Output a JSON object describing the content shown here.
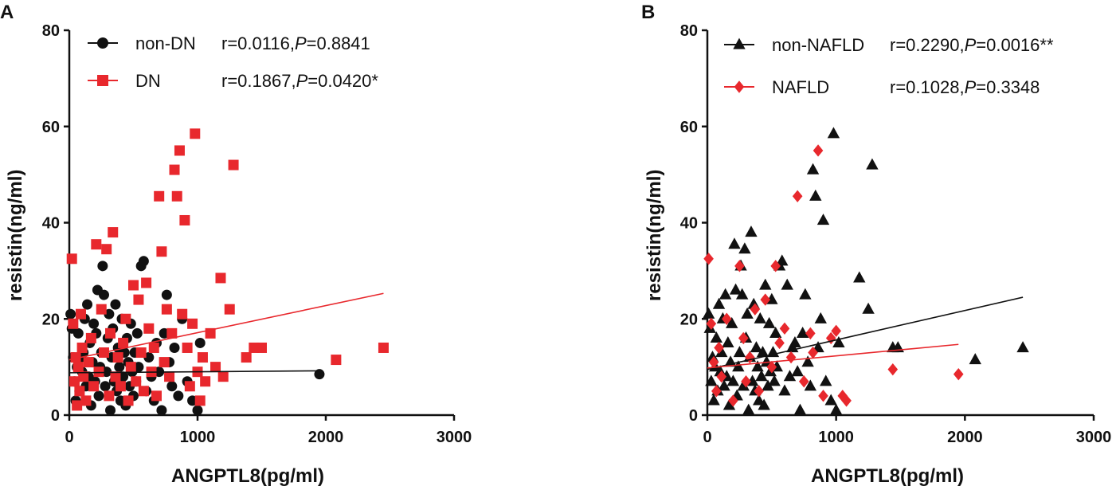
{
  "chart_data": [
    {
      "panel": "A",
      "type": "scatter",
      "xlabel": "ANGPTL8(pg/ml)",
      "ylabel": "resistin(ng/ml)",
      "xlim": [
        0,
        3000
      ],
      "ylim": [
        0,
        80
      ],
      "xticks": [
        "0",
        "1000",
        "2000",
        "3000"
      ],
      "yticks": [
        "0",
        "20",
        "40",
        "60",
        "80"
      ],
      "legend_position": "top-left",
      "series": [
        {
          "name": "non-DN",
          "stat_r": "r=0.0116,",
          "stat_p_label": "P",
          "stat_p_value": "=0.8841",
          "color": "#111111",
          "marker": "circle",
          "fit": {
            "x": [
              0,
              1950
            ],
            "y": [
              8.8,
              9.2
            ]
          },
          "points": [
            [
              10,
              21
            ],
            [
              20,
              18
            ],
            [
              30,
              12
            ],
            [
              40,
              7
            ],
            [
              50,
              3
            ],
            [
              60,
              10
            ],
            [
              70,
              17
            ],
            [
              80,
              5
            ],
            [
              90,
              12
            ],
            [
              100,
              9
            ],
            [
              110,
              13
            ],
            [
              120,
              20
            ],
            [
              130,
              6
            ],
            [
              140,
              23
            ],
            [
              150,
              8
            ],
            [
              160,
              15
            ],
            [
              170,
              2
            ],
            [
              180,
              11
            ],
            [
              190,
              19
            ],
            [
              200,
              7
            ],
            [
              210,
              17
            ],
            [
              220,
              26
            ],
            [
              230,
              4
            ],
            [
              240,
              10
            ],
            [
              250,
              13
            ],
            [
              260,
              31
            ],
            [
              270,
              25
            ],
            [
              280,
              6
            ],
            [
              290,
              9
            ],
            [
              300,
              16
            ],
            [
              310,
              21
            ],
            [
              320,
              1
            ],
            [
              330,
              12
            ],
            [
              340,
              18
            ],
            [
              350,
              7
            ],
            [
              360,
              23
            ],
            [
              370,
              5
            ],
            [
              380,
              14
            ],
            [
              390,
              10
            ],
            [
              400,
              3
            ],
            [
              410,
              20
            ],
            [
              420,
              8
            ],
            [
              430,
              13
            ],
            [
              440,
              2
            ],
            [
              450,
              16
            ],
            [
              460,
              11
            ],
            [
              470,
              6
            ],
            [
              480,
              19
            ],
            [
              490,
              9
            ],
            [
              500,
              4
            ],
            [
              510,
              13
            ],
            [
              520,
              7
            ],
            [
              530,
              17
            ],
            [
              540,
              10
            ],
            [
              560,
              31
            ],
            [
              580,
              32
            ],
            [
              600,
              5
            ],
            [
              620,
              12
            ],
            [
              640,
              8
            ],
            [
              660,
              3
            ],
            [
              680,
              15
            ],
            [
              700,
              9
            ],
            [
              720,
              1
            ],
            [
              740,
              17
            ],
            [
              760,
              25
            ],
            [
              780,
              11
            ],
            [
              800,
              6
            ],
            [
              820,
              14
            ],
            [
              850,
              4
            ],
            [
              880,
              20
            ],
            [
              920,
              7
            ],
            [
              960,
              3
            ],
            [
              1000,
              1
            ],
            [
              1020,
              15
            ],
            [
              1950,
              8.5
            ]
          ]
        },
        {
          "name": "DN",
          "stat_r": "r=0.1867,",
          "stat_p_label": "P",
          "stat_p_value": "=0.0420*",
          "color": "#e8282d",
          "marker": "square",
          "fit": {
            "x": [
              0,
              2450
            ],
            "y": [
              11.5,
              25.3
            ]
          },
          "points": [
            [
              20,
              32.5
            ],
            [
              30,
              19
            ],
            [
              40,
              7
            ],
            [
              50,
              12
            ],
            [
              60,
              2
            ],
            [
              70,
              10
            ],
            [
              80,
              5
            ],
            [
              90,
              21
            ],
            [
              100,
              14
            ],
            [
              110,
              8
            ],
            [
              130,
              3
            ],
            [
              150,
              11
            ],
            [
              170,
              16
            ],
            [
              190,
              6
            ],
            [
              210,
              35.5
            ],
            [
              230,
              9
            ],
            [
              250,
              22
            ],
            [
              270,
              13
            ],
            [
              290,
              34.5
            ],
            [
              310,
              4
            ],
            [
              320,
              17
            ],
            [
              340,
              38
            ],
            [
              360,
              8
            ],
            [
              380,
              12
            ],
            [
              400,
              6
            ],
            [
              420,
              15
            ],
            [
              440,
              20
            ],
            [
              460,
              3
            ],
            [
              480,
              10
            ],
            [
              500,
              27
            ],
            [
              520,
              7
            ],
            [
              540,
              24
            ],
            [
              560,
              13
            ],
            [
              580,
              5
            ],
            [
              600,
              27.5
            ],
            [
              620,
              18
            ],
            [
              640,
              9
            ],
            [
              660,
              14
            ],
            [
              680,
              4
            ],
            [
              700,
              45.5
            ],
            [
              720,
              34
            ],
            [
              740,
              11
            ],
            [
              760,
              22
            ],
            [
              780,
              8
            ],
            [
              800,
              17
            ],
            [
              820,
              51
            ],
            [
              840,
              45.5
            ],
            [
              860,
              55
            ],
            [
              880,
              21
            ],
            [
              900,
              40.5
            ],
            [
              920,
              14
            ],
            [
              940,
              6
            ],
            [
              960,
              19
            ],
            [
              980,
              58.5
            ],
            [
              1000,
              9
            ],
            [
              1020,
              3
            ],
            [
              1040,
              12
            ],
            [
              1060,
              7
            ],
            [
              1100,
              17
            ],
            [
              1140,
              10
            ],
            [
              1180,
              28.5
            ],
            [
              1200,
              8
            ],
            [
              1250,
              22
            ],
            [
              1280,
              52
            ],
            [
              1380,
              12
            ],
            [
              1440,
              14
            ],
            [
              1500,
              14
            ],
            [
              2080,
              11.5
            ],
            [
              2450,
              14
            ]
          ]
        }
      ]
    },
    {
      "panel": "B",
      "type": "scatter",
      "xlabel": "ANGPTL8(pg/ml)",
      "ylabel": "resistin(ng/ml)",
      "xlim": [
        0,
        3000
      ],
      "ylim": [
        0,
        80
      ],
      "xticks": [
        "0",
        "1000",
        "2000",
        "3000"
      ],
      "yticks": [
        "0",
        "20",
        "40",
        "60",
        "80"
      ],
      "legend_position": "top-left",
      "series": [
        {
          "name": "non-NAFLD",
          "stat_r": "r=0.2290,",
          "stat_p_label": "P",
          "stat_p_value": "=0.0016**",
          "color": "#111111",
          "marker": "triangle",
          "fit": {
            "x": [
              0,
              2450
            ],
            "y": [
              9.5,
              24.5
            ]
          },
          "points": [
            [
              10,
              21
            ],
            [
              20,
              18
            ],
            [
              30,
              7
            ],
            [
              40,
              12
            ],
            [
              50,
              3
            ],
            [
              60,
              10
            ],
            [
              70,
              16
            ],
            [
              80,
              5
            ],
            [
              90,
              23
            ],
            [
              100,
              9
            ],
            [
              110,
              13
            ],
            [
              120,
              20
            ],
            [
              130,
              6
            ],
            [
              140,
              25
            ],
            [
              150,
              8
            ],
            [
              160,
              15
            ],
            [
              170,
              2
            ],
            [
              180,
              11
            ],
            [
              190,
              19
            ],
            [
              200,
              7
            ],
            [
              210,
              35.5
            ],
            [
              220,
              26
            ],
            [
              230,
              4
            ],
            [
              240,
              10
            ],
            [
              250,
              13
            ],
            [
              260,
              31
            ],
            [
              270,
              25
            ],
            [
              280,
              6
            ],
            [
              290,
              34.5
            ],
            [
              300,
              16
            ],
            [
              310,
              21
            ],
            [
              320,
              1
            ],
            [
              330,
              12
            ],
            [
              340,
              38
            ],
            [
              350,
              7
            ],
            [
              360,
              23
            ],
            [
              370,
              5
            ],
            [
              380,
              14
            ],
            [
              390,
              10
            ],
            [
              400,
              3
            ],
            [
              410,
              20
            ],
            [
              420,
              8
            ],
            [
              430,
              13
            ],
            [
              440,
              2
            ],
            [
              450,
              27
            ],
            [
              460,
              11
            ],
            [
              470,
              6
            ],
            [
              480,
              19
            ],
            [
              490,
              9
            ],
            [
              500,
              24
            ],
            [
              510,
              13
            ],
            [
              520,
              7
            ],
            [
              530,
              17
            ],
            [
              540,
              10
            ],
            [
              560,
              31
            ],
            [
              580,
              32
            ],
            [
              600,
              5
            ],
            [
              620,
              27
            ],
            [
              640,
              8
            ],
            [
              660,
              14
            ],
            [
              680,
              15
            ],
            [
              700,
              9
            ],
            [
              720,
              1
            ],
            [
              740,
              17
            ],
            [
              760,
              25
            ],
            [
              780,
              11
            ],
            [
              800,
              6
            ],
            [
              820,
              51
            ],
            [
              840,
              45.5
            ],
            [
              860,
              14
            ],
            [
              880,
              20
            ],
            [
              900,
              40.5
            ],
            [
              920,
              7
            ],
            [
              960,
              3
            ],
            [
              980,
              58.5
            ],
            [
              1000,
              1
            ],
            [
              1020,
              15
            ],
            [
              1180,
              28.5
            ],
            [
              1250,
              22
            ],
            [
              1280,
              52
            ],
            [
              1440,
              14
            ],
            [
              1480,
              14
            ],
            [
              2080,
              11.5
            ],
            [
              2450,
              14
            ]
          ]
        },
        {
          "name": "NAFLD",
          "stat_r": "r=0.1028,",
          "stat_p_label": "P",
          "stat_p_value": "=0.3348",
          "color": "#e8282d",
          "marker": "diamond",
          "fit": {
            "x": [
              0,
              1950
            ],
            "y": [
              9.8,
              14.7
            ]
          },
          "points": [
            [
              10,
              32.5
            ],
            [
              30,
              19
            ],
            [
              50,
              11
            ],
            [
              70,
              5
            ],
            [
              90,
              14
            ],
            [
              110,
              8
            ],
            [
              150,
              20
            ],
            [
              200,
              3
            ],
            [
              250,
              31
            ],
            [
              280,
              16
            ],
            [
              300,
              7
            ],
            [
              330,
              12
            ],
            [
              370,
              22
            ],
            [
              400,
              5
            ],
            [
              450,
              24
            ],
            [
              500,
              10
            ],
            [
              530,
              31
            ],
            [
              560,
              15
            ],
            [
              600,
              18
            ],
            [
              650,
              12
            ],
            [
              700,
              45.5
            ],
            [
              750,
              7
            ],
            [
              800,
              17
            ],
            [
              820,
              13
            ],
            [
              860,
              55
            ],
            [
              900,
              4
            ],
            [
              960,
              16
            ],
            [
              1000,
              17.5
            ],
            [
              1050,
              4
            ],
            [
              1080,
              3
            ],
            [
              1440,
              9.5
            ],
            [
              1950,
              8.5
            ]
          ]
        }
      ]
    }
  ]
}
